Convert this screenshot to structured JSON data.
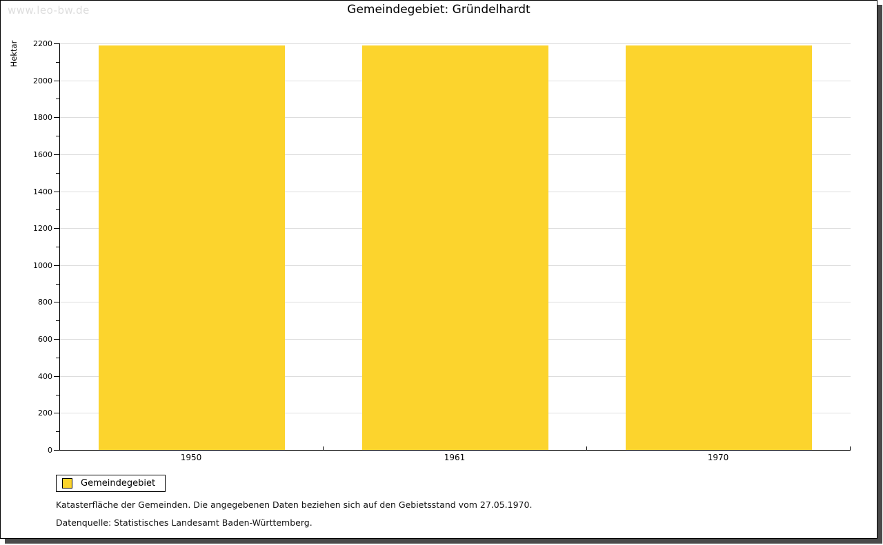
{
  "watermark": "www.leo-bw.de",
  "chart_data": {
    "type": "bar",
    "title": "Gemeindegebiet: Gründelhardt",
    "categories": [
      "1950",
      "1961",
      "1970"
    ],
    "series": [
      {
        "name": "Gemeindegebiet",
        "values": [
          2190,
          2190,
          2190
        ]
      }
    ],
    "xlabel": "",
    "ylabel": "Hektar",
    "ylim": [
      0,
      2200
    ],
    "ytick_major_step": 200,
    "ytick_minor_step": 100,
    "grid": "horizontal-major-only",
    "legend_position": "bottom-left",
    "bar_color": "#fcd42d"
  },
  "legend": {
    "items": [
      {
        "label": "Gemeindegebiet",
        "color": "#fcd42d"
      }
    ]
  },
  "footer": {
    "line1": "Katasterfläche der Gemeinden. Die angegebenen Daten beziehen sich auf den Gebietsstand vom 27.05.1970.",
    "line2": "Datenquelle: Statistisches Landesamt Baden-Württemberg."
  },
  "colors": {
    "bar": "#fcd42d",
    "gridline": "#dddddd",
    "axis": "#000000",
    "watermark": "#dddddd",
    "shadow": "#4a4a4a",
    "background": "#ffffff"
  }
}
